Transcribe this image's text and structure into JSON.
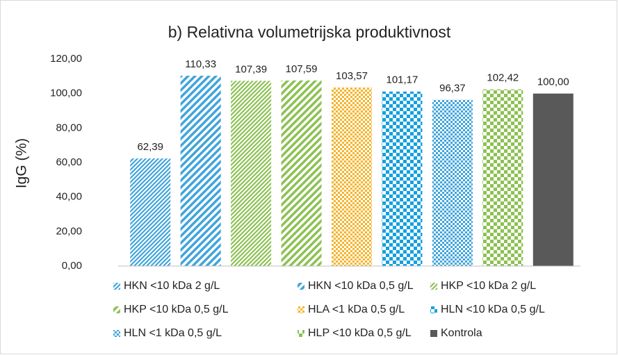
{
  "chart_data": {
    "type": "bar",
    "title": "b) Relativna volumetrijska produktivnost",
    "y_label": "IgG (%)",
    "ylim": [
      0,
      120
    ],
    "yticks": [
      {
        "value": 0,
        "label": "0,00"
      },
      {
        "value": 20,
        "label": "20,00"
      },
      {
        "value": 40,
        "label": "40,00"
      },
      {
        "value": 60,
        "label": "60,00"
      },
      {
        "value": 80,
        "label": "80,00"
      },
      {
        "value": 100,
        "label": "100,00"
      },
      {
        "value": 120,
        "label": "120,00"
      }
    ],
    "grid": false,
    "series": [
      {
        "name": "HKN <10 kDa 2 g/L",
        "color": "#3fa4dc",
        "pattern": "diagonal-narrow",
        "values": [
          62.39
        ],
        "value_labels": [
          "62,39"
        ]
      },
      {
        "name": "HKN <10 kDa 0,5 g/L",
        "color": "#3fa4dc",
        "pattern": "diagonal-wide",
        "values": [
          110.33
        ],
        "value_labels": [
          "110,33"
        ]
      },
      {
        "name": "HKP <10 kDa 2 g/L",
        "color": "#8cc152",
        "pattern": "diagonal-narrow",
        "values": [
          107.39
        ],
        "value_labels": [
          "107,39"
        ]
      },
      {
        "name": "HKP <10 kDa 0,5 g/L",
        "color": "#8cc152",
        "pattern": "diagonal-wide",
        "values": [
          107.59
        ],
        "value_labels": [
          "107,59"
        ]
      },
      {
        "name": "HLA <1 kDa 0,5 g/L",
        "color": "#f4b42c",
        "pattern": "checker-small",
        "values": [
          103.57
        ],
        "value_labels": [
          "103,57"
        ]
      },
      {
        "name": "HLN <10 kDa 0,5 g/L",
        "color": "#14a0e0",
        "pattern": "checker-large",
        "values": [
          101.17
        ],
        "value_labels": [
          "101,17"
        ]
      },
      {
        "name": "HLN <1 kDa 0,5 g/L",
        "color": "#3fa4dc",
        "pattern": "checker-small",
        "values": [
          96.37
        ],
        "value_labels": [
          "96,37"
        ]
      },
      {
        "name": "HLP <10 kDa 0,5 g/L",
        "color": "#8cc152",
        "pattern": "checker-large",
        "values": [
          102.42
        ],
        "value_labels": [
          "102,42"
        ]
      },
      {
        "name": "Kontrola",
        "color": "#595959",
        "pattern": "solid",
        "values": [
          100
        ],
        "value_labels": [
          "100,00"
        ]
      }
    ]
  }
}
